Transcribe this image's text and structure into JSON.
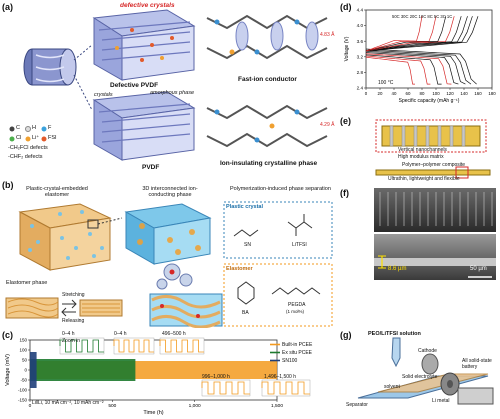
{
  "panel_a": {
    "label": "(a)",
    "defective_crystals": "defective crystals",
    "defective_pvdf": "Defective PVDF",
    "fast_ion": "Fast-ion conductor",
    "dist_top": "4.83 Å",
    "dist_bottom": "4.29 Å",
    "crystals": "crystals",
    "amorphous": "amorphous phase",
    "pvdf": "PVDF",
    "ion_insulating": "Ion-insulating crystalline phase",
    "legend": {
      "c": "C",
      "h": "H",
      "f": "F",
      "cl": "Cl",
      "li": "Li⁺",
      "fsi": "FSI",
      "chfcl": "-CH₂FCl defects",
      "chf": "-CHF₂ defects"
    }
  },
  "panel_b": {
    "label": "(b)",
    "plastic_crystal_elastomer": "Plastic-crystal-embedded elastomer",
    "interconnected": "3D interconnected ion-conducting phase",
    "polymerization": "Polymerization-induced phase separation",
    "plastic_crystal": "Plastic crystal",
    "sn": "SN",
    "litfsi": "LiTFSI",
    "elastomer": "Elastomer",
    "ba": "BA",
    "pegda": "PEGDA",
    "pegda_pct": "(1 mol%)",
    "elastomer_phase": "Elastomer phase",
    "stretching": "Stretching",
    "releasing": "Releasing"
  },
  "panel_c": {
    "label": "(c)",
    "ylabel": "Voltage (mV)",
    "xlabel": "Time (h)",
    "legend": [
      "Built-in PCEE",
      "Ex situ PCEE",
      "SN100"
    ],
    "inset_labels": [
      "Zoom in",
      "0–4 h",
      "0–4 h",
      "496–500 h",
      "996–1,000 h",
      "1,496–1,500 h"
    ],
    "cell_note": "Li‖Li, 10 mA cm⁻², 10 mAh cm⁻²"
  },
  "panel_d": {
    "label": "(d)",
    "temp": "100 °C",
    "rates": "50C 30C 20C 10C 8C 5C 3C 1C"
  },
  "panel_e": {
    "label": "(e)",
    "nanochannels": "Vertical nanochannels",
    "matrix": "High modulus matrix",
    "composite": "Polymer–polymer composite",
    "ultrathin": "Ultrathin, lightweight and flexible"
  },
  "panel_f": {
    "label": "(f)",
    "thickness": "8.6 µm",
    "scale": "50 µm"
  },
  "panel_g": {
    "label": "(g)",
    "solution": "PEO/LiTFSI solution",
    "all_solid": "All solid-state battery",
    "cathode": "Cathode",
    "solid_electrolyte": "Solid electrolyte",
    "solvent": "solvent",
    "li_metal": "Li metal",
    "separator": "Separator"
  },
  "chart_data": [
    {
      "type": "line",
      "title": "",
      "xlabel": "Time (h)",
      "ylabel": "Voltage (mV)",
      "xlim": [
        0,
        1500
      ],
      "ylim": [
        -150,
        150
      ],
      "xticks": [
        0,
        500,
        1000,
        1500
      ],
      "yticks": [
        -150,
        -100,
        -50,
        0,
        50,
        100,
        150
      ],
      "grid": false,
      "legend_position": "right",
      "series": [
        {
          "name": "Built-in PCEE",
          "color": "#f39a1e",
          "x": [
            0,
            1500
          ],
          "y": [
            45,
            45
          ]
        },
        {
          "name": "Ex situ PCEE",
          "color": "#1d7a2e",
          "x": [
            0,
            640
          ],
          "y": [
            55,
            55
          ]
        },
        {
          "name": "SN100",
          "color": "#1f3f7a",
          "x": [
            0,
            40
          ],
          "y": [
            90,
            90
          ]
        }
      ]
    },
    {
      "type": "line",
      "title": "",
      "xlabel": "Specific capacity (mAh g⁻¹)",
      "ylabel": "Voltage (V)",
      "xlim": [
        0,
        180
      ],
      "ylim": [
        2.4,
        4.4
      ],
      "xticks": [
        0,
        20,
        40,
        60,
        80,
        100,
        120,
        140,
        160,
        180
      ],
      "yticks": [
        2.4,
        2.8,
        3.2,
        3.6,
        4.0,
        4.4
      ],
      "grid": false,
      "legend_position": "top",
      "series": [
        {
          "name": "1C",
          "color": "#111111",
          "charge_end": 160,
          "discharge_end": 158
        },
        {
          "name": "3C",
          "color": "#111111",
          "charge_end": 152,
          "discharge_end": 150
        },
        {
          "name": "5C",
          "color": "#111111",
          "charge_end": 145,
          "discharge_end": 142
        },
        {
          "name": "8C",
          "color": "#111111",
          "charge_end": 136,
          "discharge_end": 132
        },
        {
          "name": "10C",
          "color": "#d62828",
          "charge_end": 126,
          "discharge_end": 122
        },
        {
          "name": "20C",
          "color": "#111111",
          "charge_end": 114,
          "discharge_end": 108
        },
        {
          "name": "30C",
          "color": "#d62828",
          "charge_end": 100,
          "discharge_end": 92
        },
        {
          "name": "50C",
          "color": "#d62828",
          "charge_end": 80,
          "discharge_end": 70
        }
      ]
    }
  ]
}
